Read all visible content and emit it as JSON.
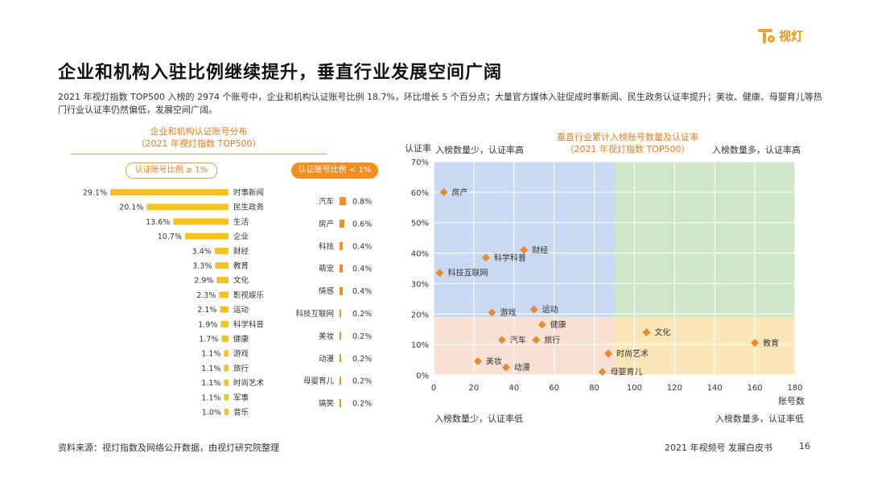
{
  "brand": {
    "name": "视灯"
  },
  "title": "企业和机构入驻比例继续提升，垂直行业发展空间广阔",
  "description": "2021 年视灯指数 TOP500 入榜的 2974 个账号中，企业和机构认证账号比例 18.7%，环比增长 5 个百分点；大量官方媒体入驻促成时事新闻、民生政务认证率提升；美妆、健康、母婴育儿等热门行业认证率仍然偏低，发展空间广阔。",
  "left_title": "企业和机构认证账号分布",
  "left_subtitle": "（2021 年视灯指数 TOP500）",
  "pill_high": "认证账号比例 ≥ 1%",
  "pill_low": "认证账号比例 < 1%",
  "right_title": "垂直行业累计入榜账号数量及认证率",
  "right_subtitle": "（2021 年视灯指数 TOP500）",
  "corners": {
    "top_left": "入榜数量少，认证率高",
    "top_right": "入榜数量多，认证率高",
    "bottom_left": "入榜数量少，认证率低",
    "bottom_right": "入榜数量多，认证率低"
  },
  "source": "资料来源：视灯指数及网络公开数据，由视灯研究院整理",
  "footer": "2021 年视频号 发展白皮书",
  "page_number": "16",
  "colors": {
    "accent": "#f28d1f",
    "bar_high": "#f5c31f",
    "bar_low": "#f28d1f",
    "point": "#e8892a"
  },
  "chart_data": [
    {
      "type": "bar",
      "orientation": "horizontal",
      "categories": [
        "时事新闻",
        "民生政务",
        "生活",
        "企业",
        "财经",
        "教育",
        "文化",
        "影视娱乐",
        "运动",
        "科学科普",
        "健康",
        "游戏",
        "旅行",
        "时尚艺术",
        "军事",
        "音乐"
      ],
      "values": [
        29.1,
        20.1,
        13.6,
        10.7,
        3.4,
        3.3,
        2.9,
        2.3,
        2.1,
        1.9,
        1.7,
        1.1,
        1.1,
        1.1,
        1.1,
        1.0
      ],
      "labels": [
        "29.1%",
        "20.1%",
        "13.6%",
        "10.7%",
        "3.4%",
        "3.3%",
        "2.9%",
        "2.3%",
        "2.1%",
        "1.9%",
        "1.7%",
        "1.1%",
        "1.1%",
        "1.1%",
        "1.1%",
        "1.0%"
      ]
    },
    {
      "type": "bar",
      "orientation": "horizontal",
      "categories": [
        "汽车",
        "房产",
        "科技",
        "萌宠",
        "情感",
        "科技互联网",
        "美妆",
        "动漫",
        "母婴育儿",
        "搞笑"
      ],
      "values": [
        0.8,
        0.6,
        0.4,
        0.4,
        0.4,
        0.2,
        0.2,
        0.2,
        0.2,
        0.2
      ],
      "labels": [
        "0.8%",
        "0.6%",
        "0.4%",
        "0.4%",
        "0.4%",
        "0.2%",
        "0.2%",
        "0.2%",
        "0.2%",
        "0.2%"
      ]
    },
    {
      "type": "scatter",
      "xlabel": "账号数",
      "ylabel": "认证率",
      "xlim": [
        0,
        180
      ],
      "ylim": [
        0,
        70
      ],
      "xticks": [
        0,
        20,
        40,
        60,
        80,
        100,
        120,
        140,
        160,
        180
      ],
      "yticks": [
        "0%",
        "10%",
        "20%",
        "30%",
        "40%",
        "50%",
        "60%",
        "70%"
      ],
      "quadrant_split": {
        "x": 90,
        "y": 19
      },
      "points": [
        {
          "label": "房产",
          "x": 5,
          "y": 60
        },
        {
          "label": "财经",
          "x": 45,
          "y": 41
        },
        {
          "label": "科学科普",
          "x": 26,
          "y": 38.5
        },
        {
          "label": "科技互联网",
          "x": 3,
          "y": 33.5
        },
        {
          "label": "游戏",
          "x": 29,
          "y": 20.5
        },
        {
          "label": "运动",
          "x": 50,
          "y": 21.5
        },
        {
          "label": "健康",
          "x": 54,
          "y": 16.5
        },
        {
          "label": "汽车",
          "x": 34,
          "y": 11.5
        },
        {
          "label": "旅行",
          "x": 51,
          "y": 11.5
        },
        {
          "label": "文化",
          "x": 106,
          "y": 14
        },
        {
          "label": "教育",
          "x": 160,
          "y": 10.5
        },
        {
          "label": "时尚艺术",
          "x": 87,
          "y": 7
        },
        {
          "label": "美妆",
          "x": 22,
          "y": 4.5
        },
        {
          "label": "动漫",
          "x": 36,
          "y": 2.5
        },
        {
          "label": "母婴育儿",
          "x": 84,
          "y": 1
        }
      ]
    }
  ]
}
